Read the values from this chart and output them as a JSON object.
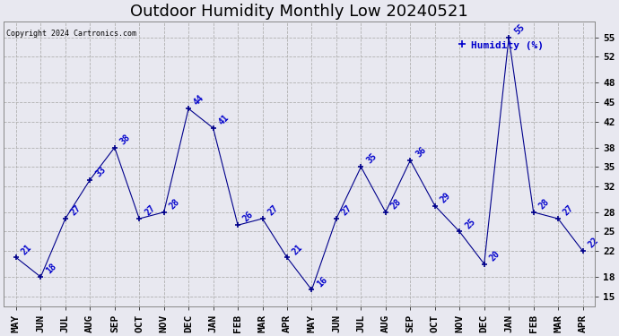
{
  "title": "Outdoor Humidity Monthly Low 20240521",
  "copyright": "Copyright 2024 Cartronics.com",
  "categories": [
    "MAY",
    "JUN",
    "JUL",
    "AUG",
    "SEP",
    "OCT",
    "NOV",
    "DEC",
    "JAN",
    "FEB",
    "MAR",
    "APR",
    "MAY",
    "JUN",
    "JUL",
    "AUG",
    "SEP",
    "OCT",
    "NOV",
    "DEC",
    "JAN",
    "FEB",
    "MAR",
    "APR"
  ],
  "values": [
    21,
    18,
    27,
    33,
    38,
    27,
    28,
    44,
    41,
    26,
    27,
    21,
    16,
    27,
    35,
    28,
    36,
    29,
    25,
    20,
    55,
    28,
    27,
    22
  ],
  "ylim": [
    13.5,
    57.5
  ],
  "ytick_values": [
    15,
    18,
    22,
    25,
    28,
    32,
    35,
    38,
    42,
    45,
    48,
    52,
    55
  ],
  "line_color": "#00008b",
  "marker_color": "#00008b",
  "annotation_color": "#0000cc",
  "grid_color": "#b0b0b0",
  "bg_color": "#e8e8f0",
  "title_fontsize": 13,
  "tick_fontsize": 8,
  "annotation_fontsize": 7,
  "legend_text": "Humidity (%)",
  "legend_color": "#0000cc",
  "copyright_color": "#000000"
}
